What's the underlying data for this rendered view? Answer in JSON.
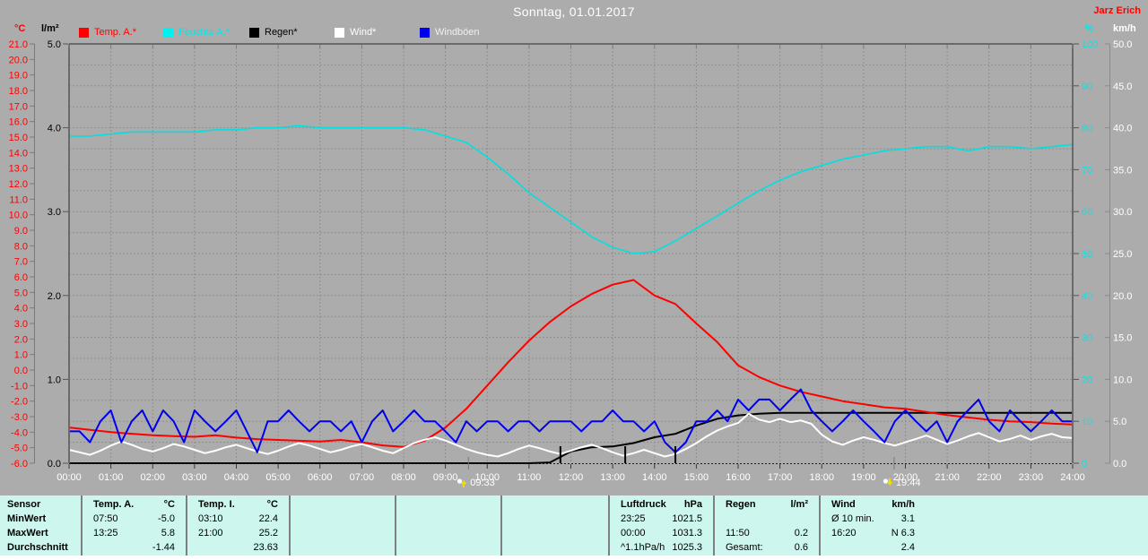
{
  "window": {
    "title": "Sonntag, 01.01.2017",
    "watermark": "Jarz Erich"
  },
  "legend": [
    {
      "label": "Temp. A.*",
      "swatch": "#ff0000",
      "text_color": "#ff0000"
    },
    {
      "label": "Feuchte A.*",
      "swatch": "#00f0f0",
      "text_color": "#00e8e8"
    },
    {
      "label": "Regen*",
      "swatch": "#000000",
      "text_color": "#000000"
    },
    {
      "label": "Wind*",
      "swatch": "#ffffff",
      "text_color": "#ffffff"
    },
    {
      "label": "Windböen",
      "swatch": "#0000ee",
      "text_color": "#f0f0f0"
    }
  ],
  "chart_data": {
    "type": "line",
    "title": "Sonntag, 01.01.2017",
    "x_axis": {
      "range_hours": [
        0,
        24
      ],
      "tick_labels": [
        "00:00",
        "01:00",
        "02:00",
        "03:00",
        "04:00",
        "05:00",
        "06:00",
        "07:00",
        "08:00",
        "09:00",
        "10:00",
        "11:00",
        "12:00",
        "13:00",
        "14:00",
        "15:00",
        "16:00",
        "17:00",
        "18:00",
        "19:00",
        "20:00",
        "21:00",
        "22:00",
        "23:00",
        "24:00"
      ],
      "label_color": "#ffffff"
    },
    "axes": {
      "temp_c": {
        "label": "°C",
        "color": "#ff0000",
        "range": [
          -6,
          21
        ],
        "ticks": [
          "21.0",
          "20.0",
          "19.0",
          "18.0",
          "17.0",
          "16.0",
          "15.0",
          "14.0",
          "13.0",
          "12.0",
          "11.0",
          "10.0",
          "9.0",
          "8.0",
          "7.0",
          "6.0",
          "5.0",
          "4.0",
          "3.0",
          "2.0",
          "1.0",
          "0.0",
          "-1.0",
          "-2.0",
          "-3.0",
          "-4.0",
          "-5.0",
          "-6.0"
        ]
      },
      "rain_lm2": {
        "label": "l/m²",
        "color": "#000000",
        "range": [
          0,
          5
        ],
        "ticks": [
          "5.0",
          "4.0",
          "3.0",
          "2.0",
          "1.0",
          "0.0"
        ]
      },
      "humidity_pct": {
        "label": "%",
        "color": "#00e8e8",
        "range": [
          0,
          100
        ],
        "ticks": [
          "100",
          "90",
          "80",
          "70",
          "60",
          "50",
          "40",
          "30",
          "20",
          "10",
          "0"
        ]
      },
      "wind_kmh": {
        "label": "km/h",
        "color": "#ffffff",
        "range": [
          0,
          50
        ],
        "ticks": [
          "50.0",
          "45.0",
          "40.0",
          "35.0",
          "30.0",
          "25.0",
          "20.0",
          "15.0",
          "10.0",
          "5.0",
          "0.0"
        ]
      }
    },
    "grid": {
      "vertical_every_hours": 1,
      "horizontal_divisions": 20,
      "color": "#8e8e8e"
    },
    "series": [
      {
        "name": "Feuchte A.",
        "axis": "humidity_pct",
        "color": "#00e0e0",
        "width": 1.6,
        "step_h": 0.5,
        "values": [
          78,
          78,
          78.5,
          79,
          79,
          79,
          79,
          79.5,
          79.5,
          80,
          80,
          80.5,
          80,
          80,
          80,
          80,
          80,
          79.5,
          78,
          76.5,
          73,
          69,
          64.5,
          61,
          57.5,
          54,
          51.5,
          50,
          50.5,
          53,
          56,
          59,
          62,
          65,
          67.5,
          69.5,
          71,
          72.5,
          73.5,
          74.5,
          75,
          75.5,
          75.5,
          74.5,
          75.5,
          75.5,
          75,
          75.5,
          76
        ]
      },
      {
        "name": "Regen",
        "axis": "rain_lm2",
        "color": "#000000",
        "width": 2,
        "step_h": 0.5,
        "values": [
          0,
          0,
          0,
          0,
          0,
          0,
          0,
          0,
          0,
          0,
          0,
          0,
          0,
          0,
          0,
          0,
          0,
          0,
          0,
          0,
          0,
          0,
          0,
          0.01,
          0.14,
          0.19,
          0.2,
          0.24,
          0.31,
          0.35,
          0.45,
          0.53,
          0.57,
          0.59,
          0.6,
          0.6,
          0.6,
          0.6,
          0.6,
          0.6,
          0.6,
          0.6,
          0.6,
          0.6,
          0.6,
          0.6,
          0.6,
          0.6,
          0.6
        ]
      },
      {
        "name": "Temp. A.",
        "axis": "temp_c",
        "color": "#ff0000",
        "width": 2,
        "step_h": 0.5,
        "values": [
          -3.7,
          -3.85,
          -4.0,
          -4.1,
          -4.2,
          -4.25,
          -4.3,
          -4.2,
          -4.35,
          -4.45,
          -4.5,
          -4.55,
          -4.6,
          -4.5,
          -4.65,
          -4.85,
          -4.95,
          -4.55,
          -3.7,
          -2.5,
          -1.0,
          0.5,
          1.9,
          3.1,
          4.1,
          4.9,
          5.5,
          5.8,
          4.8,
          4.25,
          3.0,
          1.8,
          0.3,
          -0.45,
          -1.0,
          -1.4,
          -1.7,
          -2.0,
          -2.2,
          -2.4,
          -2.5,
          -2.7,
          -2.9,
          -3.05,
          -3.2,
          -3.3,
          -3.35,
          -3.45,
          -3.5
        ]
      },
      {
        "name": "Wind",
        "axis": "wind_kmh",
        "color": "#ffffff",
        "width": 2,
        "step_h": 0.25,
        "values": [
          1.6,
          1.3,
          1.0,
          1.5,
          2.1,
          2.6,
          2.2,
          1.7,
          1.4,
          1.8,
          2.3,
          2.0,
          1.6,
          1.2,
          1.5,
          1.9,
          2.2,
          1.8,
          1.4,
          1.1,
          1.5,
          2.0,
          2.4,
          2.1,
          1.7,
          1.3,
          1.6,
          2.0,
          2.3,
          1.9,
          1.5,
          1.2,
          1.8,
          2.4,
          2.8,
          3.1,
          2.7,
          2.2,
          1.7,
          1.3,
          1.0,
          0.8,
          1.2,
          1.7,
          2.1,
          1.8,
          1.4,
          1.1,
          1.5,
          1.9,
          2.2,
          1.8,
          1.3,
          0.9,
          1.2,
          1.6,
          1.2,
          0.8,
          1.1,
          1.7,
          2.4,
          3.2,
          3.9,
          4.4,
          4.8,
          5.9,
          5.2,
          4.9,
          5.3,
          4.9,
          5.1,
          4.7,
          3.4,
          2.6,
          2.2,
          2.7,
          3.1,
          2.8,
          2.4,
          2.1,
          2.5,
          2.9,
          3.3,
          2.8,
          2.3,
          2.7,
          3.2,
          3.6,
          3.1,
          2.6,
          2.9,
          3.3,
          2.8,
          3.2,
          3.5,
          3.1,
          3.0
        ]
      },
      {
        "name": "Windböen",
        "axis": "wind_kmh",
        "color": "#0000ee",
        "width": 2,
        "step_h": 0.25,
        "values": [
          3.8,
          3.8,
          2.5,
          5.0,
          6.3,
          2.5,
          5.0,
          6.3,
          3.8,
          6.3,
          5.0,
          2.5,
          6.3,
          5.0,
          3.8,
          5.0,
          6.3,
          3.8,
          1.3,
          5.0,
          5.0,
          6.3,
          5.0,
          3.8,
          5.0,
          5.0,
          3.8,
          5.0,
          2.5,
          5.0,
          6.3,
          3.8,
          5.0,
          6.3,
          5.0,
          5.0,
          3.8,
          2.5,
          5.0,
          3.8,
          5.0,
          5.0,
          3.8,
          5.0,
          5.0,
          3.8,
          5.0,
          5.0,
          5.0,
          3.8,
          5.0,
          5.0,
          6.3,
          5.0,
          5.0,
          3.8,
          5.0,
          2.5,
          1.3,
          2.5,
          5.0,
          5.0,
          6.3,
          5.0,
          7.6,
          6.3,
          7.6,
          7.6,
          6.3,
          7.6,
          8.8,
          6.3,
          5.0,
          3.8,
          5.0,
          6.3,
          5.0,
          3.8,
          2.5,
          5.0,
          6.3,
          5.0,
          3.8,
          5.0,
          2.5,
          5.0,
          6.3,
          7.6,
          5.0,
          3.8,
          6.3,
          5.0,
          3.8,
          5.0,
          6.3,
          5.0,
          5.0
        ]
      }
    ],
    "rain_event_ticks_h": [
      11.75,
      13.3,
      14.5
    ],
    "sun_markers": [
      {
        "label": "09:33",
        "hour": 9.55,
        "direction": "up"
      },
      {
        "label": "19:44",
        "hour": 19.73,
        "direction": "down"
      }
    ]
  },
  "summary_table": {
    "row_labels": [
      "Sensor",
      "MinWert",
      "MaxWert",
      "Durchschnitt"
    ],
    "columns": [
      {
        "header": "Temp. A.",
        "unit": "°C",
        "cells": [
          [
            "07:50",
            "-5.0"
          ],
          [
            "13:25",
            "5.8"
          ],
          [
            "",
            "-1.44"
          ]
        ]
      },
      {
        "header": "Temp. I.",
        "unit": "°C",
        "cells": [
          [
            "03:10",
            "22.4"
          ],
          [
            "21:00",
            "25.2"
          ],
          [
            "",
            "23.63"
          ]
        ]
      },
      {
        "header": "",
        "unit": "",
        "cells": [
          [
            "",
            ""
          ],
          [
            "",
            ""
          ],
          [
            "",
            ""
          ]
        ]
      },
      {
        "header": "",
        "unit": "",
        "cells": [
          [
            "",
            ""
          ],
          [
            "",
            ""
          ],
          [
            "",
            ""
          ]
        ]
      },
      {
        "header": "",
        "unit": "",
        "cells": [
          [
            "",
            ""
          ],
          [
            "",
            ""
          ],
          [
            "",
            ""
          ]
        ]
      },
      {
        "header": "Luftdruck",
        "unit": "hPa",
        "cells": [
          [
            "23:25",
            "1021.5"
          ],
          [
            "00:00",
            "1031.3"
          ],
          [
            "^1.1hPa/h",
            "1025.3"
          ]
        ]
      },
      {
        "header": "Regen",
        "unit": "l/m²",
        "cells": [
          [
            "",
            ""
          ],
          [
            "11:50",
            "0.2"
          ],
          [
            "Gesamt:",
            "0.6"
          ]
        ]
      },
      {
        "header": "Wind",
        "unit": "km/h",
        "cells": [
          [
            "Ø 10 min.",
            "3.1"
          ],
          [
            "16:20",
            "N 6.3"
          ],
          [
            "",
            "2.4"
          ]
        ]
      }
    ]
  },
  "colors": {
    "background": "#acacac",
    "grid": "#8e8e8e",
    "plot_border": "#6a6a6a",
    "table_background": "#ccf6ee",
    "table_divider": "#7f7f7f",
    "title": "#ffffff",
    "marker_arrow": "#f0e000"
  }
}
